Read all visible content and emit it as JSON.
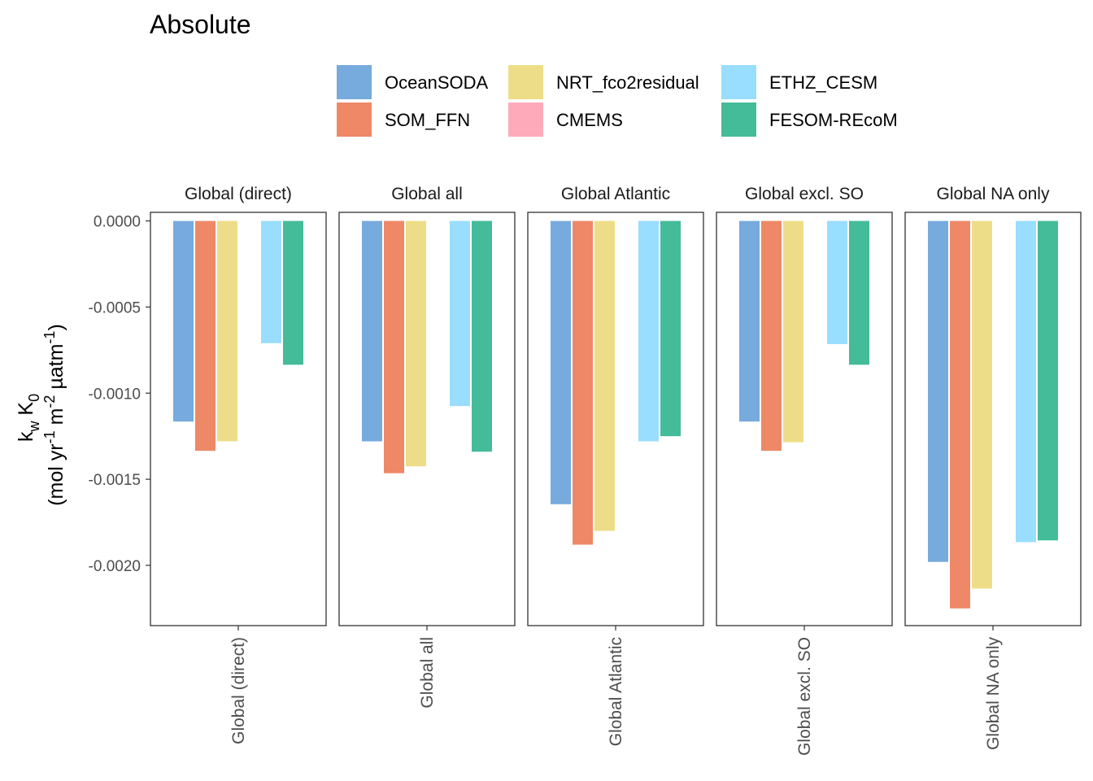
{
  "chart_data": {
    "type": "bar",
    "title": "Absolute",
    "ylabel": {
      "line1": {
        "base1": "k",
        "sub1": "w",
        "base2": " K",
        "sub2": "0"
      },
      "line2": {
        "t1": "(mol yr",
        "s1": "-1",
        "t2": " m",
        "s2": "-2",
        "t3": " µatm",
        "s3": "-1",
        "t4": ")"
      }
    },
    "ylim": [
      -0.00235,
      5e-05
    ],
    "yticks": [
      0.0,
      -0.0005,
      -0.001,
      -0.0015,
      -0.002
    ],
    "ytick_labels": [
      "0.0000",
      "-0.0005",
      "-0.0010",
      "-0.0015",
      "-0.0020"
    ],
    "grid": false,
    "legend_position": "top",
    "series": [
      {
        "name": "OceanSODA",
        "color": "#77AADD"
      },
      {
        "name": "SOM_FFN",
        "color": "#EE8866"
      },
      {
        "name": "NRT_fco2residual",
        "color": "#EEDD88"
      },
      {
        "name": "CMEMS",
        "color": "#FFAABB"
      },
      {
        "name": "ETHZ_CESM",
        "color": "#99DDFF"
      },
      {
        "name": "FESOM-REcoM",
        "color": "#44BB99"
      }
    ],
    "panels": [
      {
        "label": "Global (direct)",
        "xtick": "Global (direct)",
        "values": [
          -0.001165,
          -0.001335,
          -0.00128,
          null,
          -0.00071,
          -0.000835
        ]
      },
      {
        "label": "Global all",
        "xtick": "Global all",
        "values": [
          -0.00128,
          -0.001465,
          -0.001425,
          null,
          -0.001075,
          -0.00134
        ]
      },
      {
        "label": "Global Atlantic",
        "xtick": "Global Atlantic",
        "values": [
          -0.001645,
          -0.00188,
          -0.0018,
          null,
          -0.00128,
          -0.00125
        ]
      },
      {
        "label": "Global excl. SO",
        "xtick": "Global excl. SO",
        "values": [
          -0.001165,
          -0.001335,
          -0.001285,
          null,
          -0.000715,
          -0.000835
        ]
      },
      {
        "label": "Global NA only",
        "xtick": "Global NA only",
        "values": [
          -0.00198,
          -0.00225,
          -0.002135,
          null,
          -0.001865,
          -0.001855
        ]
      }
    ]
  }
}
